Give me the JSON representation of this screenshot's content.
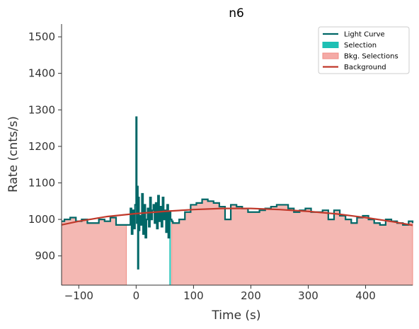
{
  "chart_data": {
    "type": "line",
    "title": "n6",
    "xlabel": "Time (s)",
    "ylabel": "Rate (cnts/s)",
    "xlim": [
      -130,
      482
    ],
    "ylim": [
      820,
      1535
    ],
    "xticks": [
      -100,
      0,
      100,
      200,
      300,
      400
    ],
    "xtick_labels": [
      "−100",
      "0",
      "100",
      "200",
      "300",
      "400"
    ],
    "yticks": [
      900,
      1000,
      1100,
      1200,
      1300,
      1400,
      1500
    ],
    "ytick_labels": [
      "900",
      "1000",
      "1100",
      "1200",
      "1300",
      "1400",
      "1500"
    ],
    "legend": {
      "position": "top-right",
      "entries": [
        {
          "label": "Light Curve",
          "kind": "line",
          "color": "#006767"
        },
        {
          "label": "Selection",
          "kind": "patch",
          "color": "#1ec0b4"
        },
        {
          "label": "Bkg. Selections",
          "kind": "patch",
          "color": "#f4aaa6"
        },
        {
          "label": "Background",
          "kind": "line",
          "color": "#c0392b"
        }
      ]
    },
    "series": [
      {
        "name": "Light Curve",
        "style": "steps",
        "x": [
          -130,
          -125,
          -115,
          -105,
          -95,
          -85,
          -75,
          -65,
          -55,
          -45,
          -35,
          -25,
          -15,
          -10,
          -8,
          -6,
          -4,
          -2,
          0,
          1,
          2,
          3,
          4,
          5,
          6,
          8,
          10,
          12,
          14,
          16,
          18,
          20,
          22,
          24,
          26,
          28,
          30,
          32,
          34,
          36,
          38,
          40,
          42,
          44,
          46,
          48,
          50,
          52,
          54,
          56,
          58,
          60,
          62,
          64,
          75,
          85,
          95,
          105,
          115,
          125,
          135,
          145,
          155,
          165,
          175,
          185,
          195,
          205,
          215,
          225,
          235,
          245,
          255,
          265,
          275,
          285,
          295,
          305,
          315,
          325,
          335,
          345,
          355,
          365,
          375,
          385,
          395,
          405,
          415,
          425,
          435,
          445,
          455,
          465,
          475,
          482
        ],
        "y": [
          995,
          1000,
          1005,
          995,
          1000,
          990,
          990,
          1000,
          995,
          1005,
          985,
          985,
          985,
          1030,
          960,
          1025,
          975,
          1040,
          1280,
          990,
          1090,
          865,
          1060,
          970,
          1010,
          985,
          1070,
          960,
          1040,
          950,
          1000,
          1030,
          980,
          1060,
          1000,
          1025,
          1040,
          990,
          1045,
          975,
          1065,
          995,
          1035,
          980,
          1060,
          1000,
          1025,
          965,
          1040,
          950,
          1020,
          1000,
          995,
          990,
          1000,
          1020,
          1040,
          1045,
          1055,
          1050,
          1045,
          1035,
          1000,
          1040,
          1035,
          1030,
          1020,
          1020,
          1025,
          1030,
          1035,
          1040,
          1040,
          1030,
          1020,
          1025,
          1030,
          1020,
          1020,
          1025,
          1000,
          1025,
          1010,
          1000,
          990,
          1005,
          1010,
          1000,
          990,
          985,
          1000,
          995,
          990,
          985,
          995,
          990
        ],
        "color": "#006767"
      },
      {
        "name": "Background",
        "style": "line",
        "x": [
          -130,
          -100,
          -50,
          0,
          50,
          100,
          150,
          200,
          250,
          300,
          350,
          400,
          450,
          482
        ],
        "y": [
          985,
          995,
          1008,
          1016,
          1022,
          1027,
          1030,
          1030,
          1027,
          1022,
          1015,
          1005,
          993,
          984
        ],
        "color": "#c0392b"
      }
    ],
    "selection_interval": [
      58,
      60
    ],
    "bkg_selection_intervals": [
      [
        -130,
        -17
      ],
      [
        62,
        482
      ]
    ],
    "bkg_selection_fill": "#f4b8b3",
    "bkg_selection_edge": "#f08c84",
    "selection_color": "#1ec0b4",
    "grid": false
  }
}
